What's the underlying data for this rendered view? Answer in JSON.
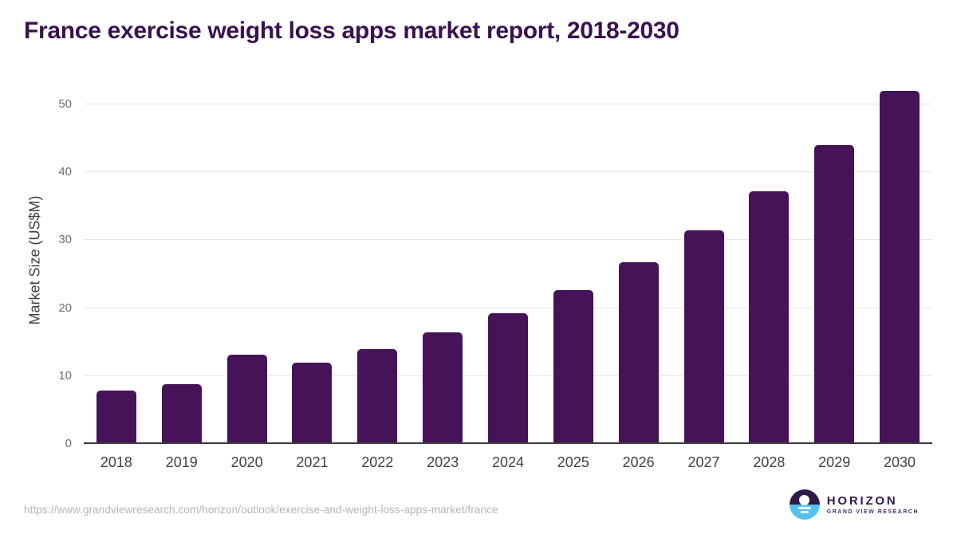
{
  "chart_data": {
    "type": "bar",
    "title": "France exercise weight loss apps market report, 2018-2030",
    "categories": [
      "2018",
      "2019",
      "2020",
      "2021",
      "2022",
      "2023",
      "2024",
      "2025",
      "2026",
      "2027",
      "2028",
      "2029",
      "2030"
    ],
    "values": [
      7.9,
      8.8,
      13.1,
      12.0,
      14.0,
      16.4,
      19.3,
      22.7,
      26.7,
      31.5,
      37.2,
      44.0,
      52.0
    ],
    "xlabel": "",
    "ylabel": "Market Size (US$M)",
    "yticks": [
      0,
      10,
      20,
      30,
      40,
      50
    ],
    "ylim": [
      0,
      54.2
    ],
    "grid": "horizontal",
    "legend": "none",
    "bar_color": "#461258",
    "title_color": "#3a1151",
    "gridline_color": "#e7e7e7",
    "axis_line_color": "#3c3c3c"
  },
  "footer": {
    "source_url": "https://www.grandviewresearch.com/horizon/outlook/exercise-and-weight-loss-apps-market/france",
    "logo": {
      "name": "HORIZON",
      "subtitle": "GRAND VIEW RESEARCH",
      "icon": "sunrise-horizon-icon",
      "dark_color": "#2e1a47",
      "blue_color": "#55c1ed"
    }
  }
}
